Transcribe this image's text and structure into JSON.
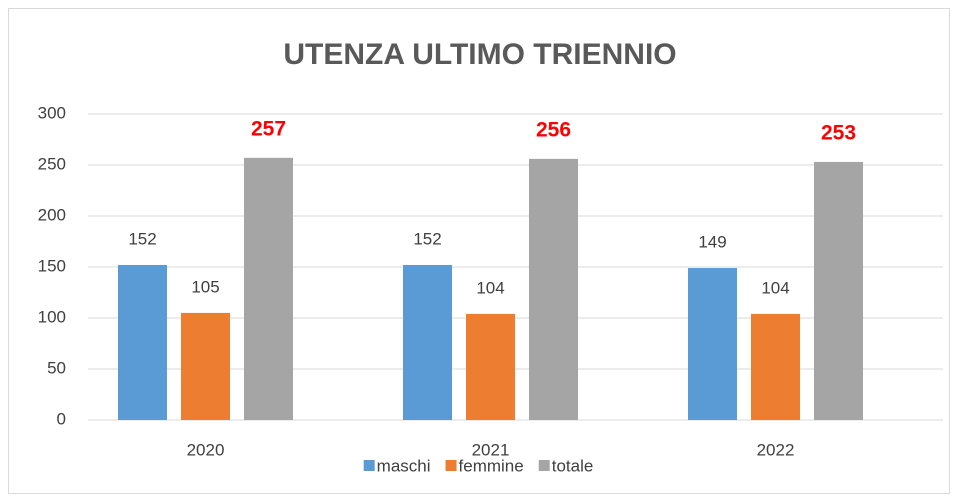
{
  "chart_data": {
    "type": "bar",
    "title": "UTENZA ULTIMO TRIENNIO",
    "categories": [
      "2020",
      "2021",
      "2022"
    ],
    "series": [
      {
        "name": "maschi",
        "color": "#5b9bd5",
        "label_color": "#404040",
        "label_bold": false,
        "values": [
          152,
          152,
          149
        ]
      },
      {
        "name": "femmine",
        "color": "#ed7d31",
        "label_color": "#404040",
        "label_bold": false,
        "values": [
          105,
          104,
          104
        ]
      },
      {
        "name": "totale",
        "color": "#a5a5a5",
        "label_color": "#ff0000",
        "label_bold": true,
        "values": [
          257,
          256,
          253
        ]
      }
    ],
    "ylim": [
      0,
      300
    ],
    "yticks": [
      0,
      50,
      100,
      150,
      200,
      250,
      300
    ],
    "grid": true,
    "legend": "bottom"
  }
}
